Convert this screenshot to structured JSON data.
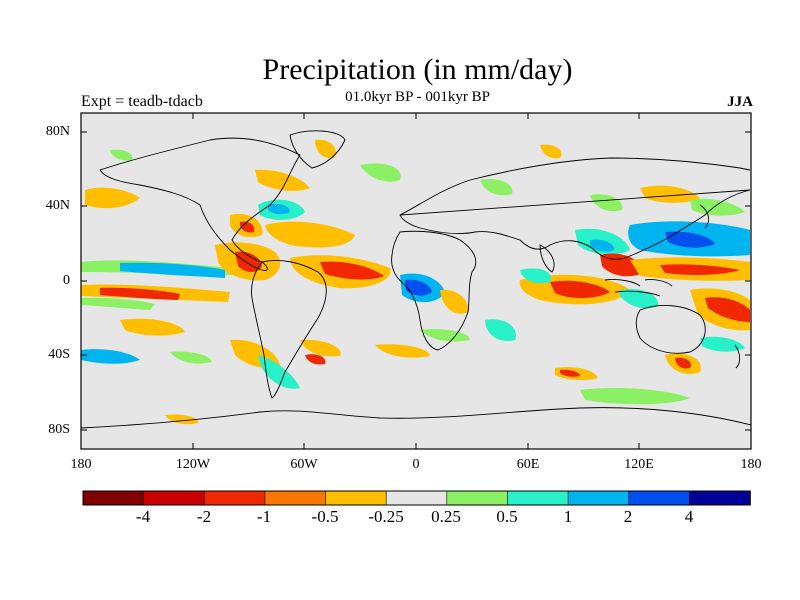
{
  "title": "Precipitation (in mm/day)",
  "subtitle": "01.0kyr BP - 001kyr BP",
  "experiment": "Expt = teadb-tdacb",
  "season": "JJA",
  "lat_labels": [
    "80N",
    "40N",
    "0",
    "40S",
    "80S"
  ],
  "lon_labels": [
    "180",
    "120W",
    "60W",
    "0",
    "60E",
    "120E",
    "180"
  ],
  "colorbar": {
    "colors": [
      "#800000",
      "#c80000",
      "#f02800",
      "#fa7800",
      "#ffbe00",
      "#e6e6e6",
      "#8cf064",
      "#28f0c8",
      "#00b4f0",
      "#0050f0",
      "#000096"
    ],
    "labels": [
      "-4",
      "-2",
      "-1",
      "-0.5",
      "-0.25",
      "0.25",
      "0.5",
      "1",
      "2",
      "4"
    ]
  },
  "colors": {
    "ocean_bg": "#e6e6e6",
    "coast": "#000000"
  }
}
